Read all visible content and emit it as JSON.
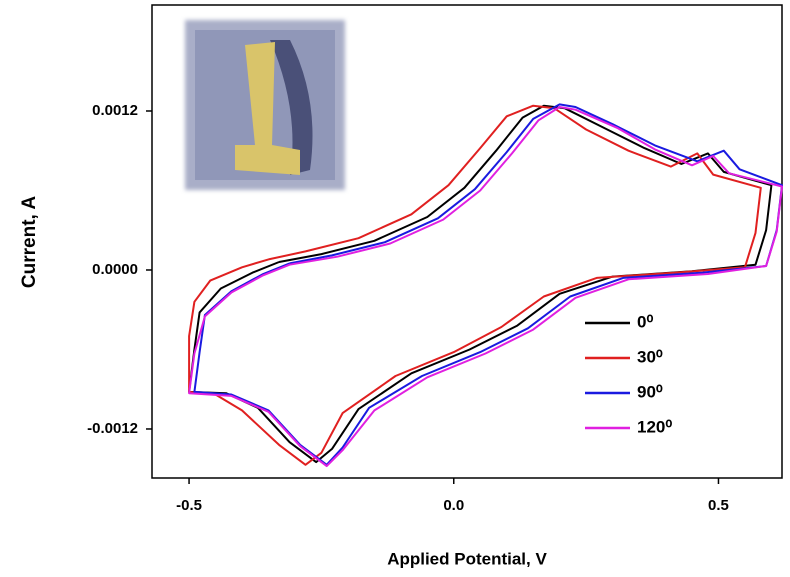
{
  "chart_data": {
    "type": "line",
    "xlabel": "Applied Potential, V",
    "ylabel": "Current, A",
    "xlim": [
      -0.57,
      0.62
    ],
    "ylim": [
      -0.00157,
      0.002
    ],
    "xticks": [
      -0.5,
      {
        "value": 0,
        "label": "0.0"
      },
      0.5
    ],
    "yticks": [
      {
        "value": -0.0012,
        "label": "-0.0012"
      },
      {
        "value": 0,
        "label": "0.0000"
      },
      {
        "value": 0.0012,
        "label": "0.0012"
      }
    ],
    "legend": "lower right",
    "series": [
      {
        "name": "0⁰",
        "color": "#000000",
        "x": [
          -0.33,
          -0.25,
          -0.15,
          -0.05,
          0.02,
          0.08,
          0.13,
          0.17,
          0.21,
          0.28,
          0.36,
          0.43,
          0.48,
          0.51,
          0.6,
          0.59,
          0.57,
          0.45,
          0.3,
          0.2,
          0.12,
          0.03,
          -0.08,
          -0.18,
          -0.23,
          -0.26,
          -0.31,
          -0.37,
          -0.43,
          -0.5,
          -0.49,
          -0.48,
          -0.44,
          -0.38,
          -0.33
        ],
        "values": [
          6e-05,
          0.00012,
          0.00022,
          0.0004,
          0.00062,
          0.0009,
          0.00115,
          0.00124,
          0.00122,
          0.00108,
          0.00092,
          0.0008,
          0.00088,
          0.00074,
          0.00064,
          0.0003,
          4e-05,
          -1e-05,
          -5e-05,
          -0.00018,
          -0.00042,
          -0.0006,
          -0.00078,
          -0.00105,
          -0.00135,
          -0.00145,
          -0.0013,
          -0.00104,
          -0.00093,
          -0.00092,
          -0.0006,
          -0.00032,
          -0.00014,
          -2e-05,
          6e-05
        ]
      },
      {
        "name": "30⁰",
        "color": "#e02020",
        "x": [
          -0.35,
          -0.28,
          -0.18,
          -0.08,
          -0.01,
          0.05,
          0.1,
          0.15,
          0.19,
          0.25,
          0.33,
          0.41,
          0.46,
          0.49,
          0.58,
          0.57,
          0.55,
          0.42,
          0.27,
          0.17,
          0.09,
          0.0,
          -0.11,
          -0.21,
          -0.25,
          -0.28,
          -0.33,
          -0.4,
          -0.45,
          -0.5,
          -0.5,
          -0.49,
          -0.46,
          -0.4,
          -0.35
        ],
        "values": [
          8e-05,
          0.00014,
          0.00024,
          0.00042,
          0.00064,
          0.00092,
          0.00116,
          0.00124,
          0.00122,
          0.00106,
          0.0009,
          0.00078,
          0.00088,
          0.00072,
          0.00062,
          0.00028,
          2e-05,
          -2e-05,
          -6e-05,
          -0.0002,
          -0.00043,
          -0.00062,
          -0.0008,
          -0.00108,
          -0.00138,
          -0.00147,
          -0.00132,
          -0.00106,
          -0.00094,
          -0.00092,
          -0.0005,
          -0.00024,
          -8e-05,
          2e-05,
          8e-05
        ]
      },
      {
        "name": "90⁰",
        "color": "#1a1ae0",
        "x": [
          -0.31,
          -0.23,
          -0.13,
          -0.03,
          0.04,
          0.1,
          0.15,
          0.2,
          0.23,
          0.3,
          0.38,
          0.46,
          0.51,
          0.54,
          0.62,
          0.61,
          0.59,
          0.47,
          0.32,
          0.22,
          0.14,
          0.05,
          -0.06,
          -0.16,
          -0.21,
          -0.24,
          -0.29,
          -0.35,
          -0.42,
          -0.49,
          -0.48,
          -0.47,
          -0.42,
          -0.36,
          -0.31
        ],
        "values": [
          5e-05,
          0.00011,
          0.00021,
          0.00039,
          0.00061,
          0.00089,
          0.00114,
          0.00125,
          0.00123,
          0.0011,
          0.00094,
          0.00082,
          0.0009,
          0.00076,
          0.00064,
          0.0003,
          3e-05,
          -2e-05,
          -6e-05,
          -0.0002,
          -0.00044,
          -0.00062,
          -0.0008,
          -0.00104,
          -0.00134,
          -0.00147,
          -0.00132,
          -0.00106,
          -0.00094,
          -0.00092,
          -0.00062,
          -0.00034,
          -0.00016,
          -3e-05,
          5e-05
        ]
      },
      {
        "name": "120⁰",
        "color": "#e020e0",
        "x": [
          -0.31,
          -0.22,
          -0.12,
          -0.02,
          0.05,
          0.11,
          0.16,
          0.2,
          0.23,
          0.31,
          0.38,
          0.45,
          0.49,
          0.52,
          0.62,
          0.61,
          0.59,
          0.48,
          0.33,
          0.23,
          0.15,
          0.06,
          -0.05,
          -0.15,
          -0.21,
          -0.24,
          -0.29,
          -0.35,
          -0.42,
          -0.5,
          -0.49,
          -0.47,
          -0.42,
          -0.36,
          -0.31
        ],
        "values": [
          4e-05,
          0.0001,
          0.0002,
          0.00038,
          0.0006,
          0.00088,
          0.00113,
          0.00123,
          0.00121,
          0.00107,
          0.00091,
          0.00079,
          0.00086,
          0.00073,
          0.00063,
          0.00029,
          3e-05,
          -3e-05,
          -7e-05,
          -0.00021,
          -0.00045,
          -0.00063,
          -0.00081,
          -0.00106,
          -0.00136,
          -0.00148,
          -0.00133,
          -0.00107,
          -0.00095,
          -0.00093,
          -0.00063,
          -0.00035,
          -0.00017,
          -4e-05,
          4e-05
        ]
      }
    ]
  }
}
